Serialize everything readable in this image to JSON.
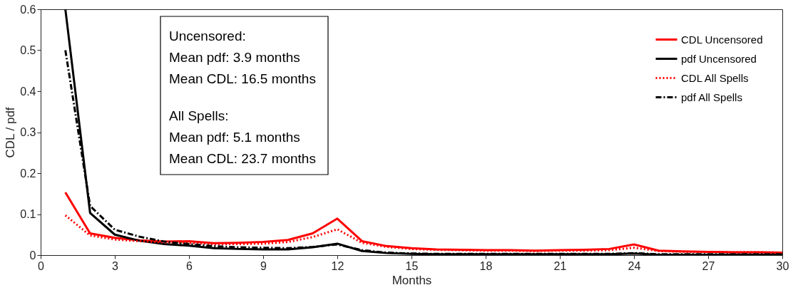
{
  "chart_data": {
    "type": "line",
    "xlabel": "Months",
    "ylabel": "CDL / pdf",
    "x": [
      1,
      2,
      3,
      4,
      5,
      6,
      7,
      8,
      9,
      10,
      11,
      12,
      13,
      14,
      15,
      16,
      17,
      18,
      19,
      20,
      21,
      22,
      23,
      24,
      25,
      26,
      27,
      28,
      29,
      30
    ],
    "xlim": [
      0,
      30
    ],
    "xticks": [
      0,
      3,
      6,
      9,
      12,
      15,
      18,
      21,
      24,
      27,
      30
    ],
    "ylim": [
      0,
      0.6
    ],
    "yticks": [
      0,
      0.1,
      0.2,
      0.3,
      0.4,
      0.5,
      0.6
    ],
    "grid": false,
    "legend": "top right",
    "marker": "none",
    "annotations": [
      "Uncensored:",
      "Mean pdf: 3.9 months",
      "Mean CDL: 16.5 months",
      "All Spells:",
      "Mean pdf: 5.1 months",
      "Mean CDL: 23.7 months"
    ],
    "series": [
      {
        "name": "CDL Uncensored",
        "color": "#ff0000",
        "line_style": "solid",
        "values": [
          0.153,
          0.053,
          0.042,
          0.036,
          0.033,
          0.034,
          0.029,
          0.03,
          0.032,
          0.037,
          0.053,
          0.089,
          0.034,
          0.022,
          0.017,
          0.014,
          0.013,
          0.012,
          0.012,
          0.011,
          0.012,
          0.013,
          0.015,
          0.026,
          0.011,
          0.009,
          0.008,
          0.007,
          0.007,
          0.006
        ]
      },
      {
        "name": "pdf Uncensored",
        "color": "#000000",
        "line_style": "solid",
        "values": [
          0.6,
          0.103,
          0.05,
          0.035,
          0.027,
          0.023,
          0.017,
          0.015,
          0.014,
          0.014,
          0.019,
          0.028,
          0.01,
          0.005,
          0.003,
          0.002,
          0.002,
          0.002,
          0.002,
          0.002,
          0.002,
          0.002,
          0.002,
          0.004,
          0.001,
          0.001,
          0.001,
          0.001,
          0.001,
          0.001
        ]
      },
      {
        "name": "CDL All Spells",
        "color": "#ff0000",
        "line_style": "dotted",
        "values": [
          0.097,
          0.048,
          0.038,
          0.034,
          0.031,
          0.03,
          0.027,
          0.027,
          0.028,
          0.032,
          0.044,
          0.063,
          0.03,
          0.02,
          0.015,
          0.013,
          0.012,
          0.011,
          0.011,
          0.01,
          0.011,
          0.011,
          0.012,
          0.018,
          0.01,
          0.008,
          0.008,
          0.007,
          0.007,
          0.006
        ]
      },
      {
        "name": "pdf All Spells",
        "color": "#000000",
        "line_style": "dashed",
        "values": [
          0.5,
          0.12,
          0.062,
          0.045,
          0.033,
          0.027,
          0.022,
          0.019,
          0.018,
          0.017,
          0.02,
          0.026,
          0.012,
          0.006,
          0.004,
          0.003,
          0.003,
          0.003,
          0.003,
          0.003,
          0.003,
          0.003,
          0.003,
          0.005,
          0.002,
          0.002,
          0.002,
          0.002,
          0.002,
          0.002
        ]
      }
    ]
  }
}
